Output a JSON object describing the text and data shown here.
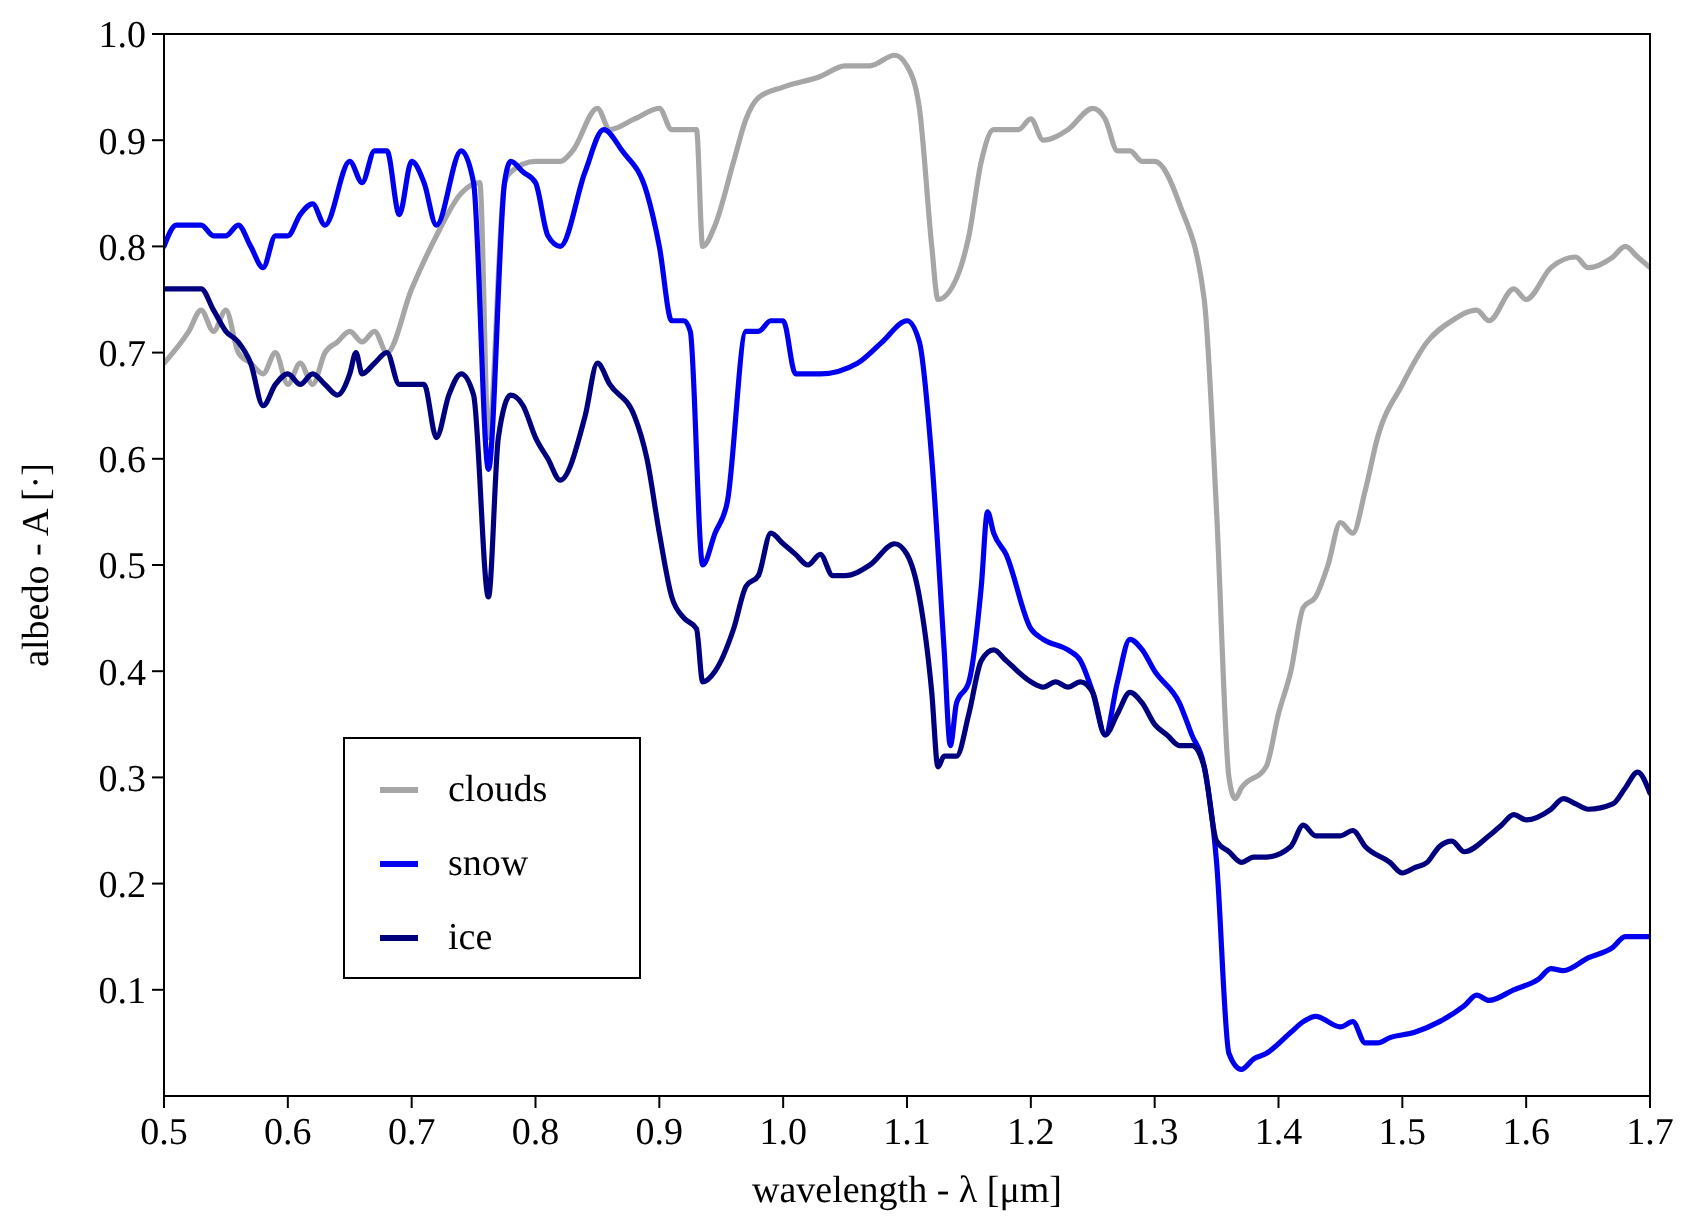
{
  "chart_data": {
    "type": "line",
    "xlabel": "wavelength - λ   [μm]",
    "ylabel": "albedo - A   [·]",
    "xlim": [
      0.5,
      1.7
    ],
    "ylim": [
      0,
      1.0
    ],
    "xticks": [
      0.5,
      0.6,
      0.7,
      0.8,
      0.9,
      {
        "value": 1.0,
        "label": "1.0"
      },
      1.1,
      1.2,
      1.3,
      1.4,
      1.5,
      1.6,
      1.7
    ],
    "yticks": [
      0.1,
      0.2,
      0.3,
      0.4,
      0.5,
      0.6,
      0.7,
      0.8,
      0.9,
      {
        "value": 1.0,
        "label": "1.0"
      }
    ],
    "grid": false,
    "legend": "bottom left",
    "marker": "none",
    "line_style": "solid",
    "series": [
      {
        "name": "clouds",
        "color": "#a6a6a6",
        "x": [
          0.5,
          0.52,
          0.53,
          0.54,
          0.55,
          0.56,
          0.57,
          0.58,
          0.59,
          0.6,
          0.61,
          0.62,
          0.63,
          0.64,
          0.65,
          0.66,
          0.67,
          0.68,
          0.7,
          0.72,
          0.74,
          0.755,
          0.762,
          0.775,
          0.78,
          0.8,
          0.82,
          0.83,
          0.85,
          0.86,
          0.88,
          0.9,
          0.91,
          0.93,
          0.935,
          0.945,
          0.96,
          0.97,
          0.98,
          1.0,
          1.03,
          1.05,
          1.07,
          1.09,
          1.1,
          1.11,
          1.12,
          1.125,
          1.14,
          1.15,
          1.16,
          1.17,
          1.18,
          1.19,
          1.2,
          1.21,
          1.23,
          1.25,
          1.26,
          1.27,
          1.28,
          1.29,
          1.3,
          1.32,
          1.34,
          1.35,
          1.36,
          1.365,
          1.37,
          1.39,
          1.4,
          1.41,
          1.42,
          1.43,
          1.44,
          1.45,
          1.46,
          1.47,
          1.48,
          1.5,
          1.52,
          1.54,
          1.56,
          1.57,
          1.59,
          1.6,
          1.62,
          1.64,
          1.65,
          1.67,
          1.68,
          1.69,
          1.7
        ],
        "values": [
          0.69,
          0.72,
          0.74,
          0.72,
          0.74,
          0.7,
          0.69,
          0.68,
          0.7,
          0.67,
          0.69,
          0.67,
          0.7,
          0.71,
          0.72,
          0.71,
          0.72,
          0.7,
          0.76,
          0.81,
          0.85,
          0.86,
          0.62,
          0.86,
          0.87,
          0.88,
          0.88,
          0.89,
          0.93,
          0.91,
          0.92,
          0.93,
          0.91,
          0.91,
          0.8,
          0.82,
          0.88,
          0.92,
          0.94,
          0.95,
          0.96,
          0.97,
          0.97,
          0.98,
          0.97,
          0.93,
          0.8,
          0.75,
          0.77,
          0.81,
          0.88,
          0.91,
          0.91,
          0.91,
          0.92,
          0.9,
          0.91,
          0.93,
          0.92,
          0.89,
          0.89,
          0.88,
          0.88,
          0.84,
          0.75,
          0.55,
          0.3,
          0.28,
          0.29,
          0.31,
          0.36,
          0.4,
          0.46,
          0.47,
          0.5,
          0.54,
          0.53,
          0.57,
          0.62,
          0.67,
          0.71,
          0.73,
          0.74,
          0.73,
          0.76,
          0.75,
          0.78,
          0.79,
          0.78,
          0.79,
          0.8,
          0.79,
          0.78
        ]
      },
      {
        "name": "snow",
        "color": "#0000f0",
        "x": [
          0.5,
          0.51,
          0.53,
          0.54,
          0.55,
          0.56,
          0.57,
          0.58,
          0.59,
          0.6,
          0.61,
          0.62,
          0.63,
          0.65,
          0.66,
          0.67,
          0.68,
          0.69,
          0.7,
          0.71,
          0.72,
          0.74,
          0.75,
          0.762,
          0.775,
          0.78,
          0.79,
          0.8,
          0.81,
          0.82,
          0.84,
          0.855,
          0.87,
          0.89,
          0.9,
          0.91,
          0.92,
          0.925,
          0.935,
          0.945,
          0.955,
          0.97,
          0.98,
          0.99,
          1.0,
          1.01,
          1.03,
          1.06,
          1.08,
          1.1,
          1.11,
          1.12,
          1.13,
          1.135,
          1.14,
          1.15,
          1.16,
          1.165,
          1.17,
          1.18,
          1.2,
          1.21,
          1.23,
          1.24,
          1.25,
          1.26,
          1.27,
          1.28,
          1.29,
          1.3,
          1.32,
          1.33,
          1.34,
          1.35,
          1.36,
          1.37,
          1.38,
          1.39,
          1.41,
          1.42,
          1.43,
          1.45,
          1.46,
          1.47,
          1.48,
          1.49,
          1.51,
          1.53,
          1.55,
          1.56,
          1.57,
          1.59,
          1.61,
          1.62,
          1.63,
          1.65,
          1.67,
          1.68,
          1.7
        ],
        "values": [
          0.8,
          0.82,
          0.82,
          0.81,
          0.81,
          0.82,
          0.8,
          0.78,
          0.81,
          0.81,
          0.83,
          0.84,
          0.82,
          0.88,
          0.86,
          0.89,
          0.89,
          0.83,
          0.88,
          0.86,
          0.82,
          0.89,
          0.86,
          0.59,
          0.86,
          0.88,
          0.87,
          0.86,
          0.81,
          0.8,
          0.87,
          0.91,
          0.89,
          0.85,
          0.8,
          0.73,
          0.73,
          0.72,
          0.5,
          0.53,
          0.56,
          0.72,
          0.72,
          0.73,
          0.73,
          0.68,
          0.68,
          0.69,
          0.71,
          0.73,
          0.71,
          0.6,
          0.42,
          0.33,
          0.37,
          0.39,
          0.48,
          0.55,
          0.53,
          0.51,
          0.44,
          0.43,
          0.42,
          0.41,
          0.38,
          0.34,
          0.39,
          0.43,
          0.42,
          0.4,
          0.37,
          0.34,
          0.31,
          0.22,
          0.04,
          0.025,
          0.035,
          0.04,
          0.06,
          0.07,
          0.075,
          0.065,
          0.07,
          0.05,
          0.05,
          0.055,
          0.06,
          0.07,
          0.085,
          0.095,
          0.09,
          0.1,
          0.11,
          0.12,
          0.118,
          0.13,
          0.14,
          0.15,
          0.15
        ]
      },
      {
        "name": "ice",
        "color": "#00007f",
        "x": [
          0.5,
          0.51,
          0.53,
          0.54,
          0.55,
          0.56,
          0.57,
          0.58,
          0.59,
          0.6,
          0.61,
          0.62,
          0.63,
          0.64,
          0.65,
          0.655,
          0.66,
          0.67,
          0.68,
          0.69,
          0.7,
          0.71,
          0.72,
          0.73,
          0.74,
          0.75,
          0.762,
          0.77,
          0.78,
          0.79,
          0.8,
          0.81,
          0.82,
          0.84,
          0.85,
          0.86,
          0.88,
          0.89,
          0.9,
          0.91,
          0.92,
          0.93,
          0.935,
          0.945,
          0.96,
          0.97,
          0.98,
          0.99,
          1.0,
          1.01,
          1.02,
          1.03,
          1.04,
          1.05,
          1.07,
          1.09,
          1.1,
          1.11,
          1.12,
          1.125,
          1.13,
          1.14,
          1.15,
          1.16,
          1.17,
          1.18,
          1.2,
          1.21,
          1.22,
          1.23,
          1.24,
          1.25,
          1.26,
          1.27,
          1.28,
          1.29,
          1.3,
          1.31,
          1.32,
          1.33,
          1.34,
          1.35,
          1.36,
          1.37,
          1.38,
          1.39,
          1.41,
          1.42,
          1.43,
          1.45,
          1.46,
          1.47,
          1.49,
          1.5,
          1.51,
          1.52,
          1.53,
          1.54,
          1.55,
          1.57,
          1.58,
          1.59,
          1.6,
          1.62,
          1.63,
          1.64,
          1.65,
          1.67,
          1.68,
          1.69,
          1.7
        ],
        "values": [
          0.76,
          0.76,
          0.76,
          0.74,
          0.72,
          0.71,
          0.69,
          0.65,
          0.67,
          0.68,
          0.67,
          0.68,
          0.67,
          0.66,
          0.68,
          0.7,
          0.68,
          0.69,
          0.7,
          0.67,
          0.67,
          0.67,
          0.62,
          0.66,
          0.68,
          0.66,
          0.47,
          0.62,
          0.66,
          0.65,
          0.62,
          0.6,
          0.58,
          0.64,
          0.69,
          0.67,
          0.64,
          0.6,
          0.53,
          0.47,
          0.45,
          0.44,
          0.39,
          0.4,
          0.44,
          0.48,
          0.49,
          0.53,
          0.52,
          0.51,
          0.5,
          0.51,
          0.49,
          0.49,
          0.5,
          0.52,
          0.51,
          0.47,
          0.38,
          0.31,
          0.32,
          0.32,
          0.36,
          0.41,
          0.42,
          0.41,
          0.39,
          0.385,
          0.39,
          0.385,
          0.39,
          0.38,
          0.34,
          0.36,
          0.38,
          0.37,
          0.35,
          0.34,
          0.33,
          0.33,
          0.31,
          0.24,
          0.23,
          0.22,
          0.225,
          0.225,
          0.235,
          0.255,
          0.245,
          0.245,
          0.25,
          0.235,
          0.22,
          0.21,
          0.215,
          0.22,
          0.235,
          0.24,
          0.23,
          0.245,
          0.255,
          0.265,
          0.26,
          0.27,
          0.28,
          0.275,
          0.27,
          0.275,
          0.29,
          0.305,
          0.285
        ]
      }
    ]
  }
}
